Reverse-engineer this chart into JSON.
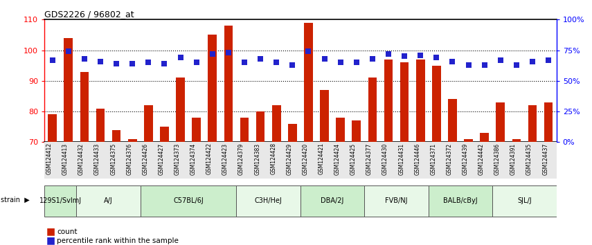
{
  "title": "GDS2226 / 96802_at",
  "gsm_labels": [
    "GSM124412",
    "GSM124413",
    "GSM124432",
    "GSM124433",
    "GSM124375",
    "GSM124376",
    "GSM124426",
    "GSM124427",
    "GSM124373",
    "GSM124374",
    "GSM124422",
    "GSM124423",
    "GSM124379",
    "GSM124383",
    "GSM124428",
    "GSM124429",
    "GSM124420",
    "GSM124421",
    "GSM124424",
    "GSM124425",
    "GSM124377",
    "GSM124430",
    "GSM124431",
    "GSM124446",
    "GSM124371",
    "GSM124372",
    "GSM124439",
    "GSM124442",
    "GSM124386",
    "GSM124391",
    "GSM124435",
    "GSM124437"
  ],
  "bar_values": [
    79,
    104,
    93,
    81,
    74,
    71,
    82,
    75,
    91,
    78,
    105,
    108,
    78,
    80,
    82,
    76,
    109,
    87,
    78,
    77,
    91,
    97,
    96,
    97,
    95,
    84,
    71,
    73,
    83,
    71,
    82,
    83
  ],
  "percentile_values": [
    67,
    74,
    68,
    66,
    64,
    64,
    65,
    64,
    69,
    65,
    72,
    73,
    65,
    68,
    65,
    63,
    74,
    68,
    65,
    65,
    68,
    72,
    70,
    71,
    69,
    66,
    63,
    63,
    67,
    63,
    66,
    67
  ],
  "strain_groups": [
    {
      "label": "129S1/SvImJ",
      "start": 0,
      "end": 2,
      "color": "#cceecc"
    },
    {
      "label": "A/J",
      "start": 2,
      "end": 6,
      "color": "#e8f8e8"
    },
    {
      "label": "C57BL/6J",
      "start": 6,
      "end": 12,
      "color": "#cceecc"
    },
    {
      "label": "C3H/HeJ",
      "start": 12,
      "end": 16,
      "color": "#e8f8e8"
    },
    {
      "label": "DBA/2J",
      "start": 16,
      "end": 20,
      "color": "#cceecc"
    },
    {
      "label": "FVB/NJ",
      "start": 20,
      "end": 24,
      "color": "#e8f8e8"
    },
    {
      "label": "BALB/cByJ",
      "start": 24,
      "end": 28,
      "color": "#cceecc"
    },
    {
      "label": "SJL/J",
      "start": 28,
      "end": 32,
      "color": "#e8f8e8"
    }
  ],
  "bar_color": "#cc2200",
  "dot_color": "#2222cc",
  "ylim_left": [
    70,
    110
  ],
  "ylim_right": [
    0,
    100
  ],
  "yticks_left": [
    70,
    80,
    90,
    100,
    110
  ],
  "yticks_right": [
    0,
    25,
    50,
    75,
    100
  ],
  "bar_width": 0.55,
  "dot_size": 28,
  "dot_marker": "s",
  "gridlines": [
    80,
    90,
    100
  ]
}
